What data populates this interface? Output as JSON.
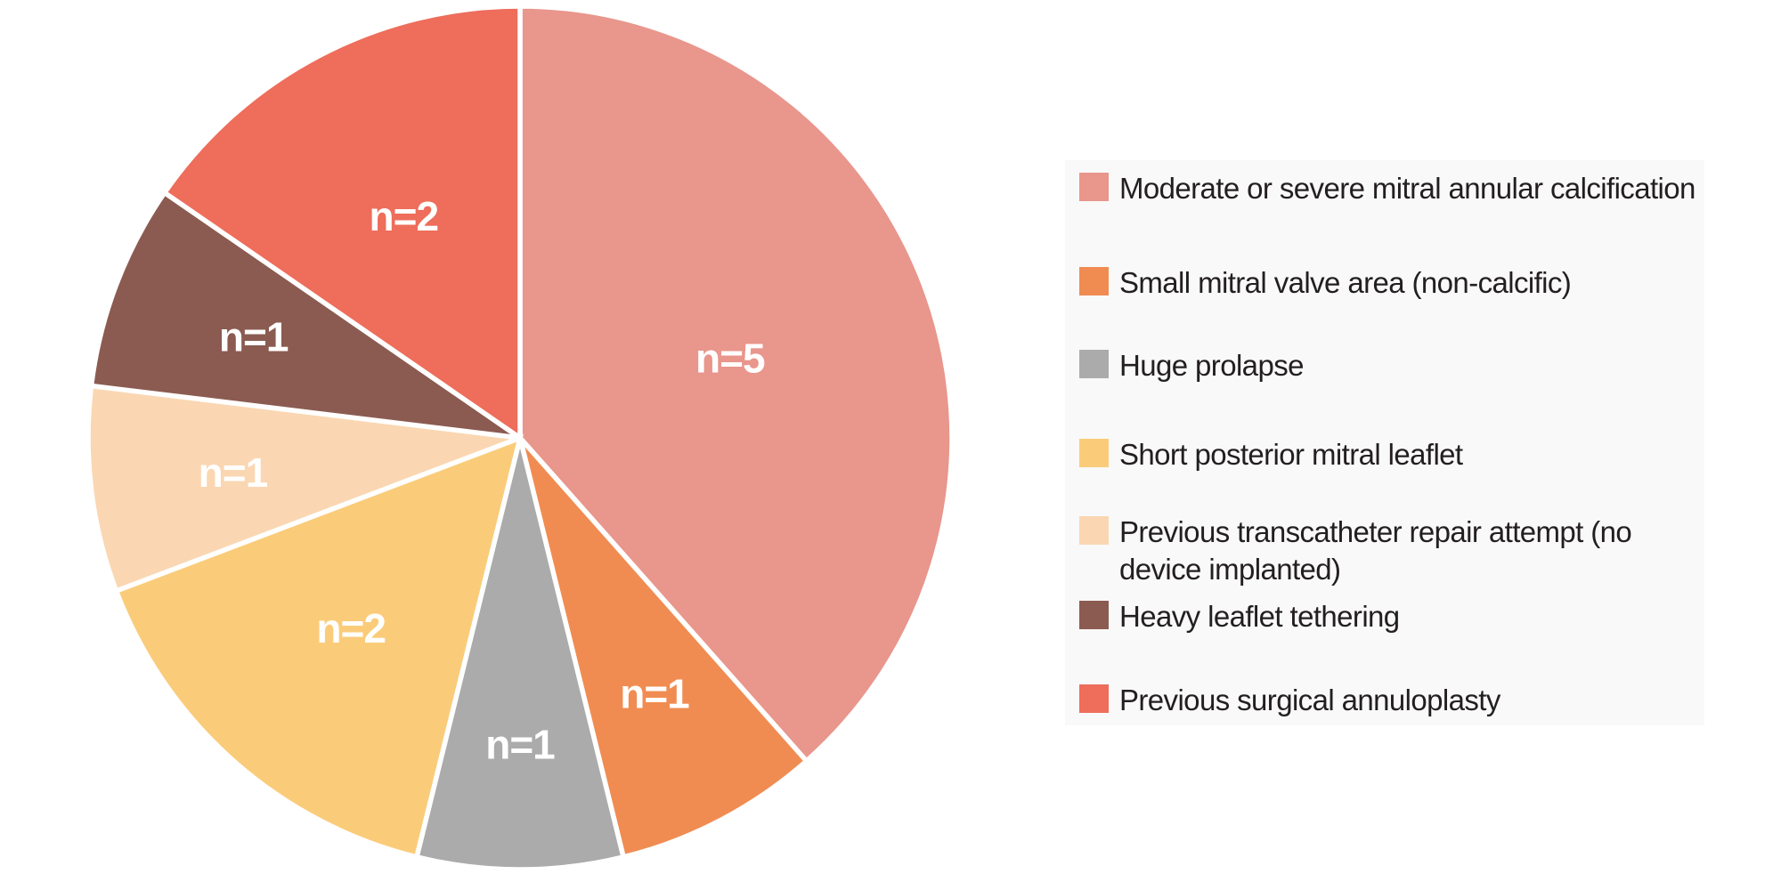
{
  "chart_data": {
    "type": "pie",
    "title": "",
    "total": 13,
    "start_angle_deg": 0,
    "direction": "clockwise",
    "legend_position": "right",
    "slice_label_color": "#ffffff",
    "slice_divider_color": "#ffffff",
    "legend_background": "#f9f9f9",
    "legend_text_color": "#231f20",
    "slices": [
      {
        "label": "Moderate or severe mitral annular calcification",
        "value": 5,
        "n_label": "n=5",
        "color": "#E9968C"
      },
      {
        "label": "Small mitral valve area (non-calcific)",
        "value": 1,
        "n_label": "n=1",
        "color": "#F08C52"
      },
      {
        "label": "Huge prolapse",
        "value": 1,
        "n_label": "n=1",
        "color": "#ABABAB"
      },
      {
        "label": "Short posterior mitral leaflet",
        "value": 2,
        "n_label": "n=2",
        "color": "#FACC7A"
      },
      {
        "label": "Previous transcatheter repair attempt (no device implanted)",
        "value": 1,
        "n_label": "n=1",
        "color": "#FAD7B2"
      },
      {
        "label": "Heavy leaflet tethering",
        "value": 1,
        "n_label": "n=1",
        "color": "#8B5B51"
      },
      {
        "label": "Previous surgical annuloplasty",
        "value": 2,
        "n_label": "n=2",
        "color": "#EE6D5B"
      }
    ]
  }
}
